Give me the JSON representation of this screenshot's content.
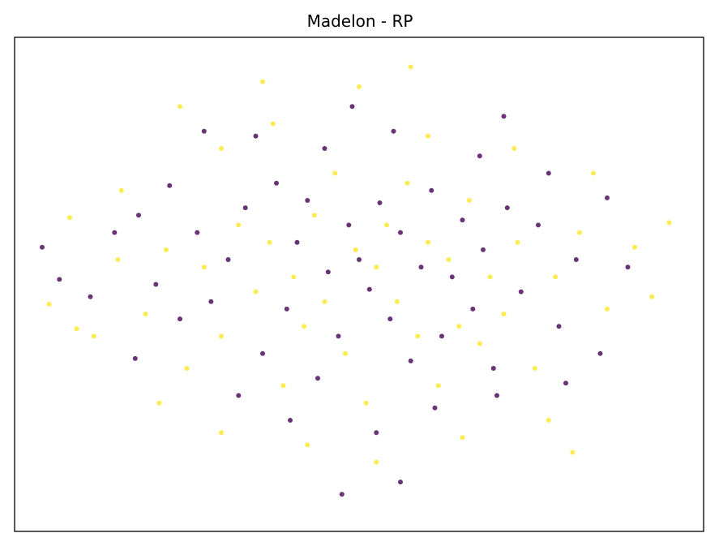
{
  "chart_data": {
    "type": "scatter",
    "title": "Madelon - RP",
    "xlabel": "",
    "ylabel": "",
    "xlim": [
      -1,
      1
    ],
    "ylim": [
      -1,
      1
    ],
    "grid": false,
    "axis_ticks": false,
    "legend": "none",
    "colors": {
      "class_0": "#440154",
      "class_1": "#fde725"
    },
    "series": [
      {
        "values": [
          [
            -0.92,
            0.15
          ],
          [
            -0.87,
            0.02
          ],
          [
            -0.71,
            0.21
          ],
          [
            -0.64,
            0.28
          ],
          [
            -0.59,
            0.0
          ],
          [
            -0.52,
            -0.14
          ],
          [
            -0.47,
            0.21
          ],
          [
            -0.43,
            -0.07
          ],
          [
            -0.38,
            0.1
          ],
          [
            -0.33,
            0.31
          ],
          [
            -0.28,
            -0.28
          ],
          [
            -0.24,
            0.41
          ],
          [
            -0.21,
            -0.1
          ],
          [
            -0.18,
            0.17
          ],
          [
            -0.15,
            0.34
          ],
          [
            -0.12,
            -0.38
          ],
          [
            -0.09,
            0.05
          ],
          [
            -0.06,
            -0.21
          ],
          [
            -0.03,
            0.24
          ],
          [
            0.0,
            0.1
          ],
          [
            0.03,
            -0.02
          ],
          [
            0.06,
            0.33
          ],
          [
            0.09,
            -0.14
          ],
          [
            0.12,
            0.21
          ],
          [
            0.15,
            -0.31
          ],
          [
            0.18,
            0.07
          ],
          [
            0.21,
            0.38
          ],
          [
            0.24,
            -0.21
          ],
          [
            0.27,
            0.03
          ],
          [
            0.3,
            0.26
          ],
          [
            0.33,
            -0.1
          ],
          [
            0.36,
            0.14
          ],
          [
            0.39,
            -0.34
          ],
          [
            0.43,
            0.31
          ],
          [
            0.47,
            -0.03
          ],
          [
            0.52,
            0.24
          ],
          [
            0.58,
            -0.17
          ],
          [
            0.63,
            0.1
          ],
          [
            0.7,
            -0.28
          ],
          [
            0.78,
            0.07
          ],
          [
            -0.35,
            -0.45
          ],
          [
            -0.2,
            -0.55
          ],
          [
            0.05,
            -0.6
          ],
          [
            0.22,
            -0.5
          ],
          [
            0.4,
            -0.45
          ],
          [
            -0.1,
            0.55
          ],
          [
            0.1,
            0.62
          ],
          [
            0.35,
            0.52
          ],
          [
            -0.3,
            0.6
          ],
          [
            0.55,
            0.45
          ],
          [
            -0.55,
            0.4
          ],
          [
            -0.65,
            -0.3
          ],
          [
            0.6,
            -0.4
          ],
          [
            -0.05,
            -0.85
          ],
          [
            0.12,
            -0.8
          ],
          [
            -0.02,
            0.72
          ],
          [
            -0.45,
            0.62
          ],
          [
            0.42,
            0.68
          ],
          [
            0.72,
            0.35
          ],
          [
            -0.78,
            -0.05
          ]
        ]
      },
      {
        "values": [
          [
            -0.9,
            -0.08
          ],
          [
            -0.84,
            0.27
          ],
          [
            -0.77,
            -0.21
          ],
          [
            -0.69,
            0.38
          ],
          [
            -0.62,
            -0.12
          ],
          [
            -0.56,
            0.14
          ],
          [
            -0.5,
            -0.34
          ],
          [
            -0.45,
            0.07
          ],
          [
            -0.4,
            -0.21
          ],
          [
            -0.35,
            0.24
          ],
          [
            -0.3,
            -0.03
          ],
          [
            -0.26,
            0.17
          ],
          [
            -0.22,
            -0.41
          ],
          [
            -0.19,
            0.03
          ],
          [
            -0.16,
            -0.17
          ],
          [
            -0.13,
            0.28
          ],
          [
            -0.1,
            -0.07
          ],
          [
            -0.07,
            0.45
          ],
          [
            -0.04,
            -0.28
          ],
          [
            -0.01,
            0.14
          ],
          [
            0.02,
            -0.48
          ],
          [
            0.05,
            0.07
          ],
          [
            0.08,
            0.24
          ],
          [
            0.11,
            -0.07
          ],
          [
            0.14,
            0.41
          ],
          [
            0.17,
            -0.21
          ],
          [
            0.2,
            0.17
          ],
          [
            0.23,
            -0.41
          ],
          [
            0.26,
            0.1
          ],
          [
            0.29,
            -0.17
          ],
          [
            0.32,
            0.34
          ],
          [
            0.35,
            -0.24
          ],
          [
            0.38,
            0.03
          ],
          [
            0.42,
            -0.12
          ],
          [
            0.46,
            0.17
          ],
          [
            0.51,
            -0.34
          ],
          [
            0.57,
            0.03
          ],
          [
            0.64,
            0.21
          ],
          [
            0.72,
            -0.1
          ],
          [
            0.8,
            0.15
          ],
          [
            -0.4,
            0.55
          ],
          [
            -0.25,
            0.65
          ],
          [
            0.0,
            0.8
          ],
          [
            0.2,
            0.6
          ],
          [
            0.45,
            0.55
          ],
          [
            -0.15,
            -0.65
          ],
          [
            0.05,
            -0.72
          ],
          [
            0.3,
            -0.62
          ],
          [
            -0.4,
            -0.6
          ],
          [
            0.55,
            -0.55
          ],
          [
            -0.7,
            0.1
          ],
          [
            0.68,
            0.45
          ],
          [
            -0.58,
            -0.48
          ],
          [
            0.85,
            -0.05
          ],
          [
            -0.82,
            -0.18
          ],
          [
            0.15,
            0.88
          ],
          [
            -0.28,
            0.82
          ],
          [
            0.62,
            -0.68
          ],
          [
            -0.52,
            0.72
          ],
          [
            0.9,
            0.25
          ]
        ]
      }
    ]
  }
}
